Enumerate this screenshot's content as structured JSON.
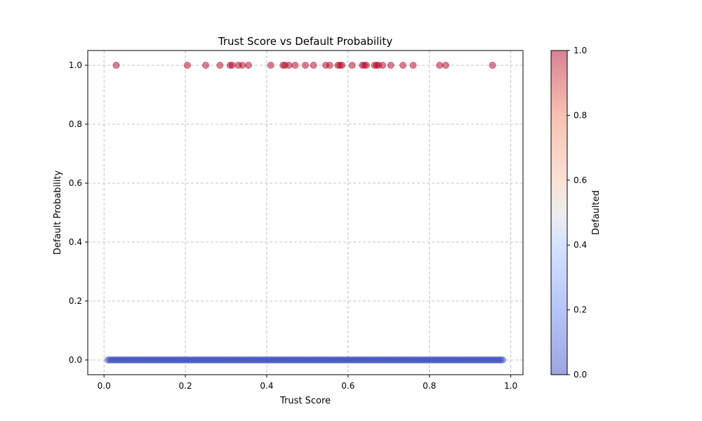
{
  "chart_data": {
    "type": "scatter",
    "title": "Trust Score vs Default Probability",
    "xlabel": "Trust Score",
    "ylabel": "Default Probability",
    "xlim": [
      -0.04,
      1.03
    ],
    "ylim": [
      -0.05,
      1.05
    ],
    "xticks": [
      "0.0",
      "0.2",
      "0.4",
      "0.6",
      "0.8",
      "1.0"
    ],
    "yticks": [
      "0.0",
      "0.2",
      "0.4",
      "0.6",
      "0.8",
      "1.0"
    ],
    "grid": true,
    "marker_alpha": 0.5,
    "colorbar": {
      "label": "Defaulted",
      "ticks": [
        "0.0",
        "0.2",
        "0.4",
        "0.6",
        "0.8",
        "1.0"
      ],
      "colormap": "coolwarm",
      "low_color": "#3b4cc0",
      "high_color": "#b40426"
    },
    "series": [
      {
        "name": "",
        "color": "#b40426",
        "y": 1.0,
        "x": [
          0.03,
          0.205,
          0.25,
          0.285,
          0.31,
          0.315,
          0.33,
          0.34,
          0.355,
          0.41,
          0.44,
          0.445,
          0.455,
          0.47,
          0.495,
          0.515,
          0.545,
          0.555,
          0.575,
          0.58,
          0.585,
          0.61,
          0.635,
          0.64,
          0.645,
          0.665,
          0.67,
          0.675,
          0.685,
          0.705,
          0.735,
          0.76,
          0.825,
          0.84,
          0.955
        ]
      },
      {
        "name": "",
        "color": "#3b4cc0",
        "y": 0.0,
        "x_range": [
          0.01,
          0.98
        ],
        "x_step": 0.005
      }
    ]
  }
}
